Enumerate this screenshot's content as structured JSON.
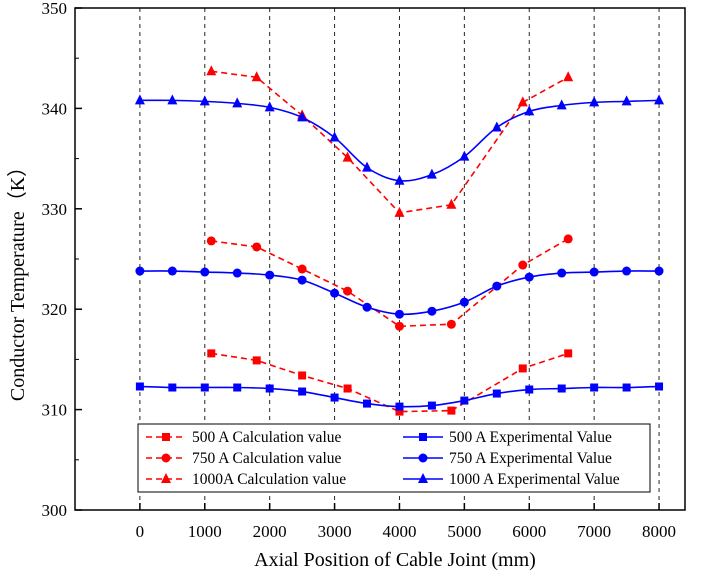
{
  "chart_data": {
    "type": "line",
    "xlabel": "Axial Position of Cable Joint (mm)",
    "ylabel": "Conductor Temperature（K）",
    "xlim": [
      -1000,
      8400
    ],
    "ylim": [
      300,
      350
    ],
    "x_ticks": [
      0,
      1000,
      2000,
      3000,
      4000,
      5000,
      6000,
      7000,
      8000
    ],
    "y_ticks": [
      300,
      310,
      320,
      330,
      340,
      350
    ],
    "grid": "vertical dashed at x ticks",
    "legend_position": "bottom",
    "series": [
      {
        "name": "500 A  Calculation value",
        "color": "#ff0000",
        "marker": "square",
        "dash": true,
        "x": [
          1100,
          1800,
          2500,
          3200,
          4000,
          4800,
          5900,
          6600
        ],
        "y": [
          315.6,
          314.9,
          313.4,
          312.1,
          309.8,
          309.9,
          314.1,
          315.6
        ]
      },
      {
        "name": "750 A  Calculation value",
        "color": "#ff0000",
        "marker": "circle",
        "dash": true,
        "x": [
          1100,
          1800,
          2500,
          3200,
          4000,
          4800,
          5900,
          6600
        ],
        "y": [
          326.8,
          326.2,
          324.0,
          321.8,
          318.3,
          318.5,
          324.4,
          327.0
        ]
      },
      {
        "name": "1000A  Calculation value",
        "color": "#ff0000",
        "marker": "triangle",
        "dash": true,
        "x": [
          1100,
          1800,
          2500,
          3200,
          4000,
          4800,
          5900,
          6600
        ],
        "y": [
          343.7,
          343.1,
          339.3,
          335.1,
          329.6,
          330.4,
          340.6,
          343.1
        ]
      },
      {
        "name": "500 A  Experimental Value",
        "color": "#0000ff",
        "marker": "square",
        "dash": false,
        "x": [
          0,
          500,
          1000,
          1500,
          2000,
          2500,
          3000,
          3500,
          4000,
          4500,
          5000,
          5500,
          6000,
          6500,
          7000,
          7500,
          8000
        ],
        "y": [
          312.3,
          312.2,
          312.2,
          312.2,
          312.1,
          311.8,
          311.2,
          310.6,
          310.3,
          310.4,
          310.9,
          311.6,
          312.0,
          312.1,
          312.2,
          312.2,
          312.3
        ]
      },
      {
        "name": "750 A  Experimental Value",
        "color": "#0000ff",
        "marker": "circle",
        "dash": false,
        "x": [
          0,
          500,
          1000,
          1500,
          2000,
          2500,
          3000,
          3500,
          4000,
          4500,
          5000,
          5500,
          6000,
          6500,
          7000,
          7500,
          8000
        ],
        "y": [
          323.8,
          323.8,
          323.7,
          323.6,
          323.4,
          322.9,
          321.6,
          320.2,
          319.5,
          319.8,
          320.7,
          322.3,
          323.2,
          323.6,
          323.7,
          323.8,
          323.8
        ]
      },
      {
        "name": "1000 A  Experimental Value",
        "color": "#0000ff",
        "marker": "triangle",
        "dash": false,
        "x": [
          0,
          500,
          1000,
          1500,
          2000,
          2500,
          3000,
          3500,
          4000,
          4500,
          5000,
          5500,
          6000,
          6500,
          7000,
          7500,
          8000
        ],
        "y": [
          340.8,
          340.8,
          340.7,
          340.5,
          340.1,
          339.1,
          337.1,
          334.1,
          332.8,
          333.4,
          335.2,
          338.1,
          339.7,
          340.3,
          340.6,
          340.7,
          340.8
        ]
      }
    ]
  }
}
